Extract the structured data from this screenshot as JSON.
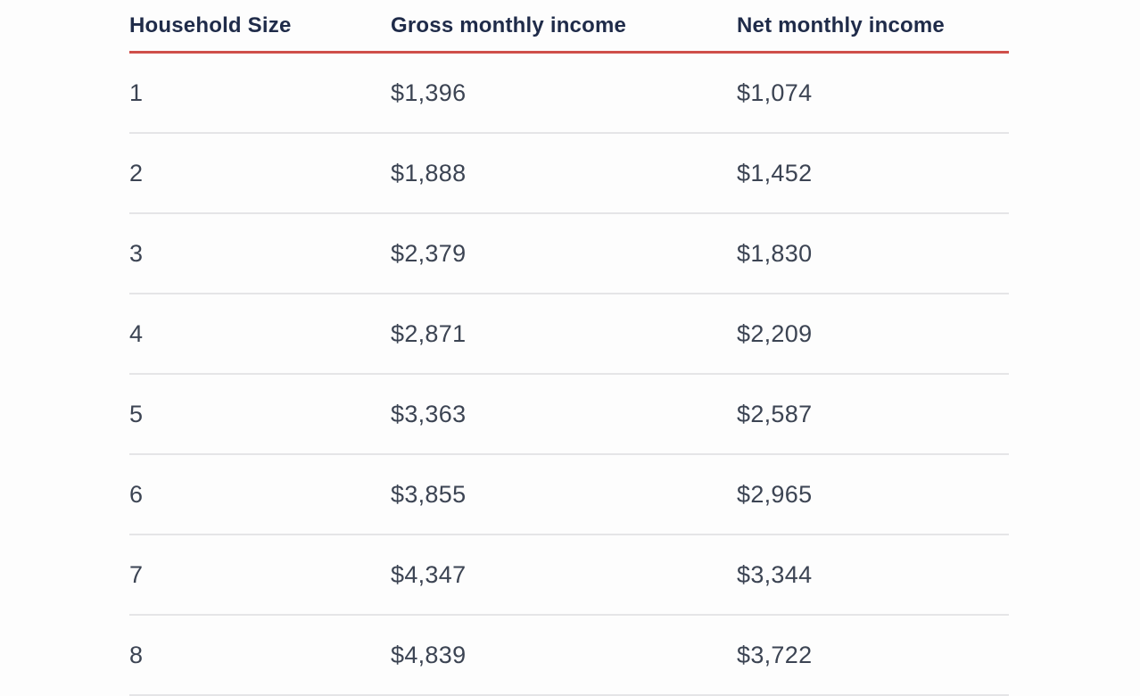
{
  "page": {
    "background": "#fdfdfd"
  },
  "table": {
    "columns": [
      {
        "label": "Household Size"
      },
      {
        "label": "Gross monthly income"
      },
      {
        "label": "Net monthly income"
      }
    ],
    "rows": [
      {
        "size": "1",
        "gross": "$1,396",
        "net": "$1,074"
      },
      {
        "size": "2",
        "gross": "$1,888",
        "net": "$1,452"
      },
      {
        "size": "3",
        "gross": "$2,379",
        "net": "$1,830"
      },
      {
        "size": "4",
        "gross": "$2,871",
        "net": "$2,209"
      },
      {
        "size": "5",
        "gross": "$3,363",
        "net": "$2,587"
      },
      {
        "size": "6",
        "gross": "$3,855",
        "net": "$2,965"
      },
      {
        "size": "7",
        "gross": "$4,347",
        "net": "$3,344"
      },
      {
        "size": "8",
        "gross": "$4,839",
        "net": "$3,722"
      }
    ],
    "colors": {
      "header_text": "#1f2b49",
      "body_text": "#3c4453",
      "accent_line": "#cf4f4a",
      "row_divider": "#e5e5e7"
    }
  },
  "chart_data": {
    "type": "table",
    "title": "",
    "columns": [
      "Household Size",
      "Gross monthly income",
      "Net monthly income"
    ],
    "rows": [
      [
        "1",
        "$1,396",
        "$1,074"
      ],
      [
        "2",
        "$1,888",
        "$1,452"
      ],
      [
        "3",
        "$2,379",
        "$1,830"
      ],
      [
        "4",
        "$2,871",
        "$2,209"
      ],
      [
        "5",
        "$3,363",
        "$2,587"
      ],
      [
        "6",
        "$3,855",
        "$2,965"
      ],
      [
        "7",
        "$4,347",
        "$3,344"
      ],
      [
        "8",
        "$4,839",
        "$3,722"
      ]
    ],
    "household_sizes": [
      1,
      2,
      3,
      4,
      5,
      6,
      7,
      8
    ],
    "gross_monthly_income": [
      1396,
      1888,
      2379,
      2871,
      3363,
      3855,
      4347,
      4839
    ],
    "net_monthly_income": [
      1074,
      1452,
      1830,
      2209,
      2587,
      2965,
      3344,
      3722
    ]
  }
}
